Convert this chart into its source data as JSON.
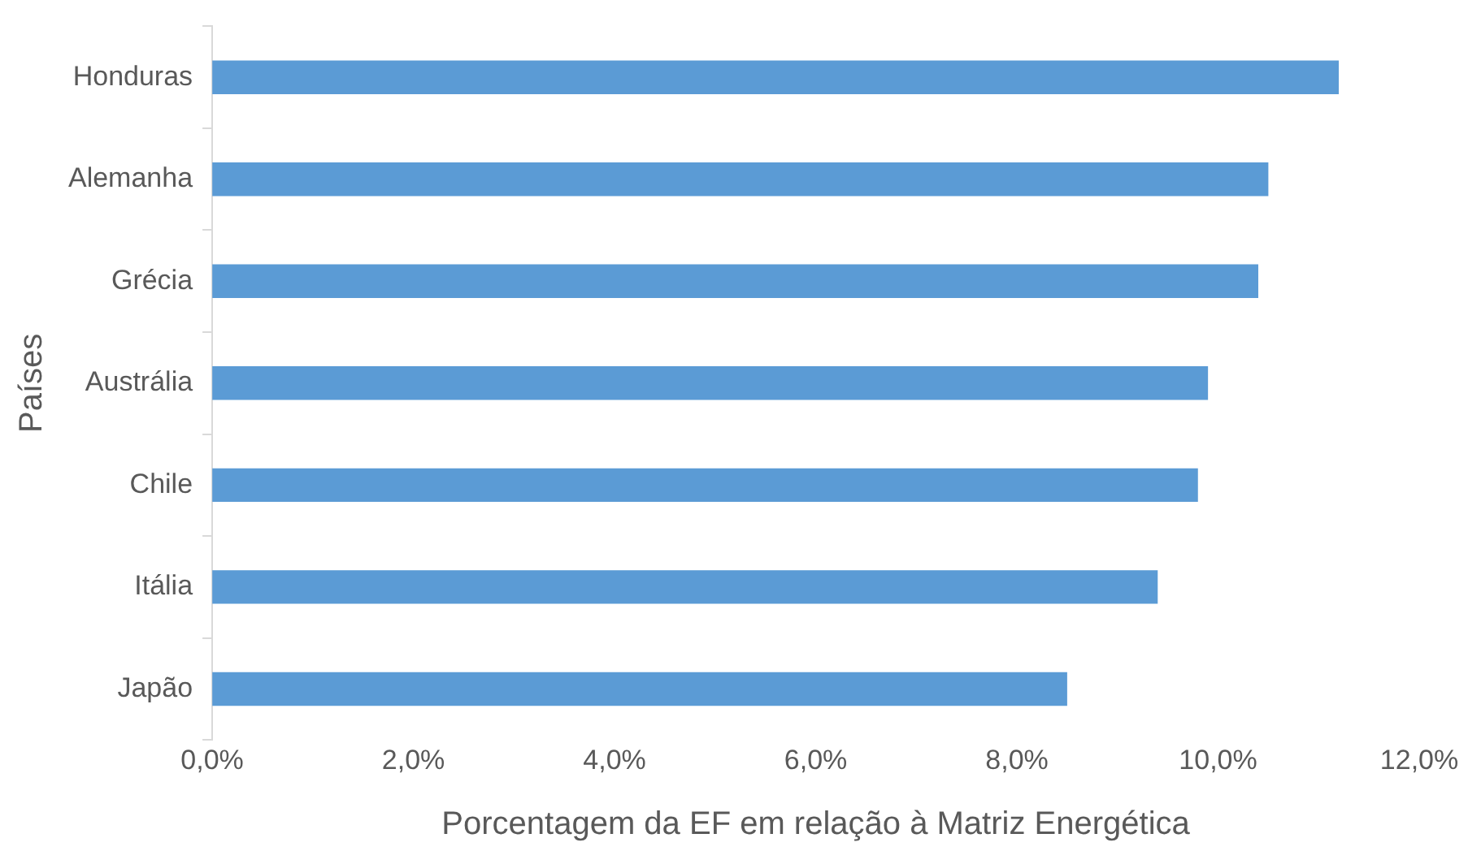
{
  "chart_data": {
    "type": "bar",
    "orientation": "horizontal",
    "xlabel": "Porcentagem da EF em relação à Matriz Energética",
    "ylabel": "Países",
    "categories": [
      "Honduras",
      "Alemanha",
      "Grécia",
      "Austrália",
      "Chile",
      "Itália",
      "Japão"
    ],
    "values": [
      11.2,
      10.5,
      10.4,
      9.9,
      9.8,
      9.4,
      8.5
    ],
    "color": "#5b9bd5",
    "xlim": [
      0,
      12
    ],
    "xticks": [
      {
        "value": 0,
        "label": "0,0%"
      },
      {
        "value": 2,
        "label": "2,0%"
      },
      {
        "value": 4,
        "label": "4,0%"
      },
      {
        "value": 6,
        "label": "6,0%"
      },
      {
        "value": 8,
        "label": "8,0%"
      },
      {
        "value": 10,
        "label": "10,0%"
      },
      {
        "value": 12,
        "label": "12,0%"
      }
    ],
    "grid": false,
    "legend": false
  }
}
